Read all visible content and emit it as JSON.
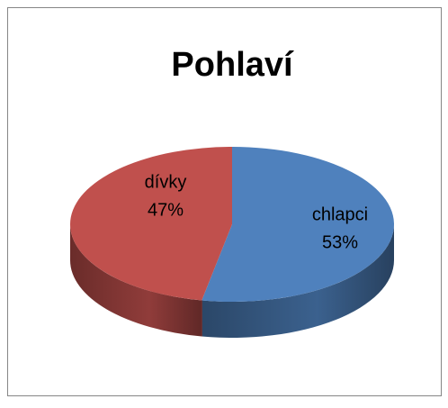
{
  "chart_data": {
    "type": "pie",
    "title": "Pohlaví",
    "categories": [
      "chlapci",
      "dívky"
    ],
    "values": [
      53,
      47
    ],
    "value_labels": [
      "53%",
      "47%"
    ],
    "colors": [
      "#4f81bd",
      "#c0504d"
    ],
    "three_d": true,
    "legend": false
  }
}
